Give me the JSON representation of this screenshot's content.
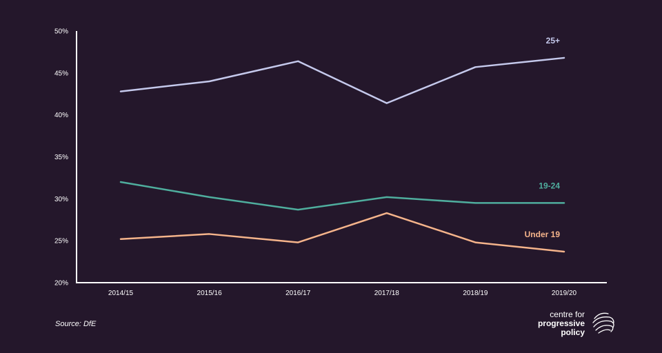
{
  "chart_data": {
    "type": "line",
    "categories": [
      "2014/15",
      "2015/16",
      "2016/17",
      "2017/18",
      "2018/19",
      "2019/20"
    ],
    "ylim": [
      20,
      50
    ],
    "yticks": [
      20,
      25,
      30,
      35,
      40,
      45,
      50
    ],
    "ytick_labels": [
      "20%",
      "25%",
      "30%",
      "35%",
      "40%",
      "45%",
      "50%"
    ],
    "grid": false,
    "series": [
      {
        "name": "25+",
        "values": [
          42.8,
          44.0,
          46.4,
          41.4,
          45.7,
          46.8
        ],
        "color": "#c5c9ec"
      },
      {
        "name": "19-24",
        "values": [
          32.0,
          30.2,
          28.7,
          30.2,
          29.5,
          29.5
        ],
        "color": "#4fae9e"
      },
      {
        "name": "Under 19",
        "values": [
          25.2,
          25.8,
          24.8,
          28.3,
          24.8,
          23.7
        ],
        "color": "#f5b48b"
      }
    ]
  },
  "source": "Source:  DfE",
  "logo": {
    "line1": "centre for",
    "line2": "progressive",
    "line3": "policy"
  },
  "colors": {
    "background": "#24172b",
    "axis": "#ffffff",
    "text": "#ffffff"
  }
}
